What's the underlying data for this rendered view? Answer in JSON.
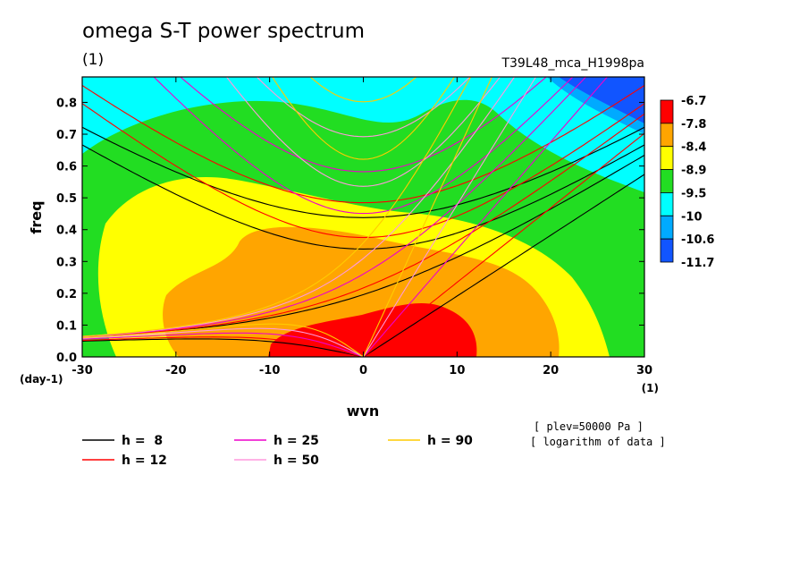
{
  "title": "omega S-T power spectrum",
  "subtitle": "(1)",
  "run_id": "T39L48_mca_H1998pa",
  "notes": [
    "[ plev=50000 Pa ]",
    "[ logarithm of data ]"
  ],
  "chart_data": {
    "type": "heatmap",
    "xlabel": "wvn",
    "ylabel": "freq",
    "x_unit": "(1)",
    "y_unit": "(day-1)",
    "xlim": [
      -30,
      30
    ],
    "ylim": [
      0,
      0.88
    ],
    "xticks": [
      -30,
      -20,
      -10,
      0,
      10,
      20,
      30
    ],
    "yticks": [
      0.0,
      0.1,
      0.2,
      0.3,
      0.4,
      0.5,
      0.6,
      0.7,
      0.8
    ],
    "ytick_labels": [
      "0.0",
      "0.1",
      "0.2",
      "0.3",
      "0.4",
      "0.5",
      "0.6",
      "0.7",
      "0.8"
    ],
    "colorbar": {
      "labels": [
        "-6.7",
        "-7.8",
        "-8.4",
        "-8.9",
        "-9.5",
        "-10",
        "-10.6",
        "-11.7"
      ],
      "colors": [
        "#ff0000",
        "#ffa500",
        "#ffff00",
        "#22dd22",
        "#00ffff",
        "#00aaff",
        "#1155ff"
      ]
    },
    "dispersion_curves": [
      {
        "name": "h =  8",
        "h": 8,
        "color": "#000000"
      },
      {
        "name": "h = 12",
        "h": 12,
        "color": "#ff0000"
      },
      {
        "name": "h = 25",
        "h": 25,
        "color": "#ee00cc"
      },
      {
        "name": "h = 50",
        "h": 50,
        "color": "#ff99dd"
      },
      {
        "name": "h = 90",
        "h": 90,
        "color": "#ffcc00"
      }
    ]
  }
}
